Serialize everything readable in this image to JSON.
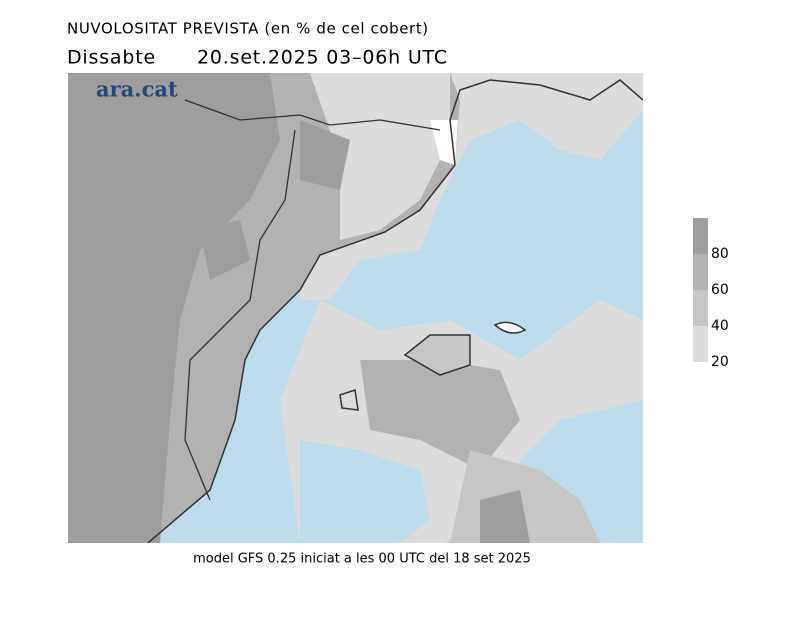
{
  "header": {
    "title": "NUVOLOSITAT PREVISTA (en % de cel cobert)",
    "day": "Dissabte",
    "period": "20.set.2025 03–06h UTC"
  },
  "logo": "ara.cat",
  "footer": "model GFS 0.25 iniciat a les 00 UTC del 18 set 2025",
  "colorbar": {
    "range": [
      20,
      100
    ],
    "ticks": [
      20,
      40,
      60,
      80
    ],
    "colors": [
      "#dcdcdc",
      "#c6c6c6",
      "#b2b2b2",
      "#9e9e9e"
    ]
  }
}
